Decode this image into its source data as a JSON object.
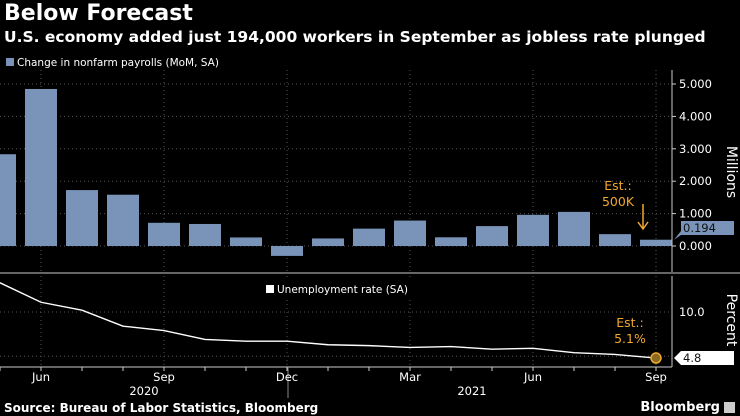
{
  "title": "Below Forecast",
  "subtitle": "U.S. economy added just 194,000 workers in September as jobless rate plunged",
  "source": "Source: Bureau of Labor Statistics, Bloomberg",
  "brand": "Bloomberg",
  "chart_data": [
    {
      "type": "bar",
      "legend": "Change in nonfarm payrolls (MoM, SA)",
      "ylabel": "Millions",
      "ylim": [
        -0.5,
        5.5
      ],
      "yticks": [
        "0.000",
        "1.000",
        "2.000",
        "3.000",
        "4.000",
        "5.000"
      ],
      "categories": [
        "May 2020",
        "Jun 2020",
        "Jul 2020",
        "Aug 2020",
        "Sep 2020",
        "Oct 2020",
        "Nov 2020",
        "Dec 2020",
        "Jan 2021",
        "Feb 2021",
        "Mar 2021",
        "Apr 2021",
        "May 2021",
        "Jun 2021",
        "Jul 2021",
        "Aug 2021",
        "Sep 2021"
      ],
      "values": [
        2.833,
        4.846,
        1.726,
        1.583,
        0.716,
        0.68,
        0.264,
        -0.306,
        0.233,
        0.536,
        0.785,
        0.269,
        0.614,
        0.962,
        1.053,
        0.366,
        0.194
      ],
      "last_value_label": "0.194",
      "annotation": [
        "Est.:",
        "500K"
      ],
      "color": "#7a93b8"
    },
    {
      "type": "line",
      "legend": "Unemployment rate (SA)",
      "ylabel": "Percent",
      "yticks": [
        "10.0"
      ],
      "categories": [
        "May 2020",
        "Jun 2020",
        "Jul 2020",
        "Aug 2020",
        "Sep 2020",
        "Oct 2020",
        "Nov 2020",
        "Dec 2020",
        "Jan 2021",
        "Feb 2021",
        "Mar 2021",
        "Apr 2021",
        "May 2021",
        "Jun 2021",
        "Jul 2021",
        "Aug 2021",
        "Sep 2021"
      ],
      "values": [
        13.3,
        11.1,
        10.2,
        8.4,
        7.9,
        6.9,
        6.7,
        6.7,
        6.3,
        6.2,
        6.0,
        6.1,
        5.8,
        5.9,
        5.4,
        5.2,
        4.8
      ],
      "last_value_label": "4.8",
      "annotation": [
        "Est.:",
        "5.1%"
      ],
      "color": "#ffffff",
      "marker_color": "#f0a830"
    }
  ],
  "x_axis": {
    "month_labels": [
      "Jun",
      "Sep",
      "Dec",
      "Mar",
      "Jun",
      "Sep"
    ],
    "year_labels": [
      "2020",
      "2021"
    ]
  }
}
